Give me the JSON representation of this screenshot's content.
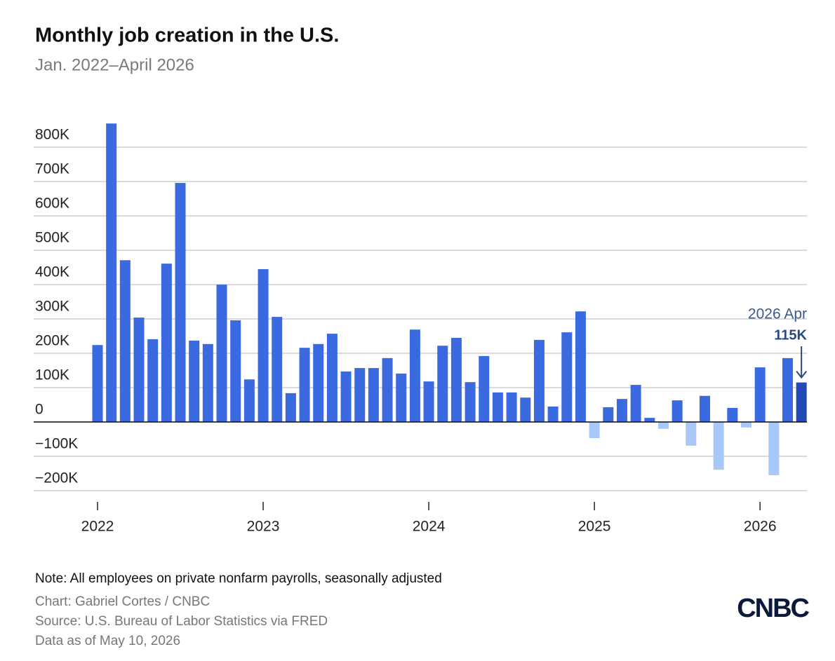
{
  "chart_data": {
    "type": "bar",
    "title": "Monthly job creation in the U.S.",
    "subtitle": "Jan. 2022–April 2026",
    "categories": [
      "2022",
      null,
      null,
      null,
      null,
      null,
      null,
      null,
      null,
      null,
      null,
      null,
      "2023",
      null,
      null,
      null,
      null,
      null,
      null,
      null,
      null,
      null,
      null,
      null,
      "2024",
      null,
      null,
      null,
      null,
      null,
      null,
      null,
      null,
      null,
      null,
      null,
      "2025",
      null,
      null,
      null,
      null,
      null,
      null,
      null,
      null,
      null,
      null,
      null,
      "2026",
      null,
      null,
      null
    ],
    "values": [
      224,
      869,
      471,
      304,
      241,
      461,
      696,
      237,
      227,
      400,
      296,
      124,
      445,
      306,
      84,
      216,
      227,
      257,
      147,
      157,
      157,
      186,
      141,
      269,
      118,
      222,
      245,
      116,
      192,
      86,
      86,
      71,
      239,
      45,
      261,
      322,
      -47,
      43,
      67,
      108,
      12,
      -20,
      63,
      -69,
      76,
      -139,
      41,
      -16,
      159,
      -155,
      186,
      115
    ],
    "color": "#3b6ae0",
    "negative_color": "#a8c8fa",
    "highlight_color": "#2349b5",
    "ylim": [
      -200,
      900
    ],
    "yticks": [
      {
        "value": -200,
        "label": "−200K"
      },
      {
        "value": -100,
        "label": "−100K"
      },
      0,
      {
        "value": 100,
        "label": "100K"
      },
      {
        "value": 200,
        "label": "200K"
      },
      {
        "value": 300,
        "label": "300K"
      },
      {
        "value": 400,
        "label": "400K"
      },
      {
        "value": 500,
        "label": "500K"
      },
      {
        "value": 600,
        "label": "600K"
      },
      {
        "value": 700,
        "label": "700K"
      },
      {
        "value": 800,
        "label": "800K"
      }
    ],
    "grid": true,
    "annotation": {
      "text": "2026 Apr",
      "label": "115K"
    },
    "note": "Note: All employees on private nonfarm payrolls, seasonally adjusted",
    "credit": "Chart: Gabriel Cortes / CNBC",
    "source": "Source: U.S. Bureau of Labor Statistics via FRED",
    "date": "Data as of May 10, 2026",
    "logo": "CNBC"
  }
}
